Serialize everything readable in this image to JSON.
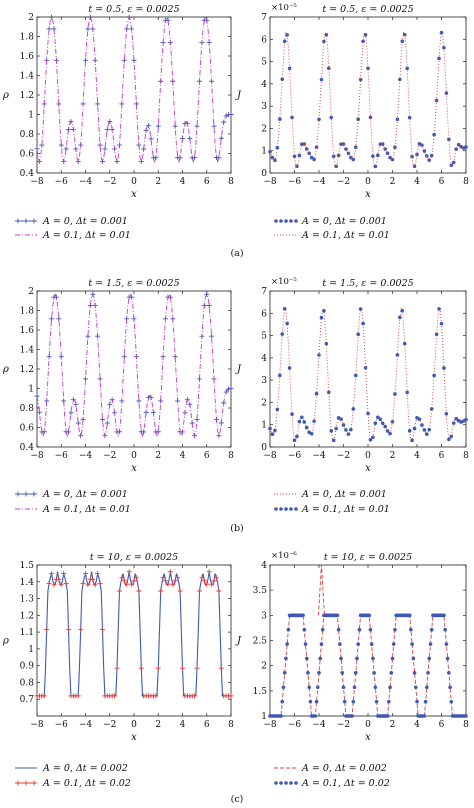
{
  "panels": [
    {
      "label": "(a)"
    },
    {
      "label": "(b)"
    },
    {
      "label": "(c)"
    }
  ],
  "chart_data": [
    {
      "id": "a-rho",
      "panel": 0,
      "side": "left",
      "type": "line",
      "title": "t = 0.5, ε = 0.0025",
      "xlabel": "x",
      "ylabel": "ρ",
      "exponent": "",
      "xlim": [
        -8,
        8
      ],
      "ylim": [
        0.4,
        2.0
      ],
      "xticks": [
        -8,
        -6,
        -4,
        -2,
        0,
        2,
        4,
        6,
        8
      ],
      "yticks": [
        0.4,
        0.6,
        0.8,
        1,
        1.2,
        1.4,
        1.6,
        1.8,
        2
      ],
      "ytick_labels": [
        "0.4",
        "0.6",
        "0.8",
        "1",
        "1.2",
        "1.4",
        "1.6",
        "1.8",
        "2"
      ],
      "profile": {
        "kind": "rho",
        "centers": [
          -6.8,
          -3.6,
          -0.4,
          2.7,
          5.9
        ],
        "base": 1.0,
        "peak": 2.0,
        "trough": 0.45,
        "mid": 1.05
      },
      "series": [
        {
          "name": "A = 0, Δt = 0.001",
          "style": "plus",
          "color": "#3f59b5",
          "values": [
            0.97,
            0.88,
            0.45,
            1.52,
            2.0,
            1.52,
            0.45,
            0.88,
            1.06,
            0.88,
            0.45,
            1.52,
            2.0,
            1.52,
            0.45,
            0.88,
            1.06,
            0.88,
            0.45,
            1.52,
            2.0,
            1.52,
            0.45,
            0.88,
            1.06,
            0.88,
            0.45,
            1.52,
            2.0,
            1.52,
            0.45,
            0.88,
            1.06,
            0.88,
            0.45,
            1.52,
            2.0,
            1.52,
            0.45,
            0.88,
            1.0
          ]
        },
        {
          "name": "A = 0.1, Δt = 0.01",
          "style": "dashdot",
          "color": "#cc33cc"
        }
      ]
    },
    {
      "id": "a-J",
      "panel": 0,
      "side": "right",
      "type": "line",
      "title": "t = 0.5, ε = 0.0025",
      "xlabel": "x",
      "ylabel": "J",
      "exponent": "×10⁻⁵",
      "xlim": [
        -8,
        8
      ],
      "ylim": [
        0,
        7
      ],
      "xticks": [
        -8,
        -6,
        -4,
        -2,
        0,
        2,
        4,
        6,
        8
      ],
      "yticks": [
        0,
        1,
        2,
        3,
        4,
        5,
        6,
        7
      ],
      "ytick_labels": [
        "0",
        "1",
        "2",
        "3",
        "4",
        "5",
        "6",
        "7"
      ],
      "profile": {
        "kind": "J",
        "centers": [
          -6.7,
          -3.5,
          -0.3,
          2.9,
          6.0
        ],
        "peak": 6.3,
        "floor": 0.3
      },
      "series": [
        {
          "name": "A = 0, Δt = 0.001",
          "style": "dots",
          "color": "#3f59b5"
        },
        {
          "name": "A = 0.1, Δt = 0.01",
          "style": "dotted",
          "color": "#e03c3c"
        }
      ]
    },
    {
      "id": "b-rho",
      "panel": 1,
      "side": "left",
      "type": "line",
      "title": "t = 1.5, ε = 0.0025",
      "xlabel": "x",
      "ylabel": "ρ",
      "exponent": "",
      "xlim": [
        -8,
        8
      ],
      "ylim": [
        0.4,
        2.0
      ],
      "xticks": [
        -8,
        -6,
        -4,
        -2,
        0,
        2,
        4,
        6,
        8
      ],
      "yticks": [
        0.4,
        0.6,
        0.8,
        1,
        1.2,
        1.4,
        1.6,
        1.8,
        2
      ],
      "ytick_labels": [
        "0.4",
        "0.6",
        "0.8",
        "1",
        "1.2",
        "1.4",
        "1.6",
        "1.8",
        "2"
      ],
      "profile": {
        "kind": "rho",
        "centers": [
          -6.5,
          -3.4,
          -0.3,
          2.9,
          6.0
        ],
        "base": 1.0,
        "peak": 1.97,
        "trough": 0.45,
        "mid": 1.0
      },
      "series": [
        {
          "name": "A = 0, Δt = 0.001",
          "style": "plus",
          "color": "#3f59b5"
        },
        {
          "name": "A = 0.1, Δt = 0.01",
          "style": "dashdot",
          "color": "#cc33cc"
        }
      ]
    },
    {
      "id": "b-J",
      "panel": 1,
      "side": "right",
      "type": "line",
      "title": "t = 1.5, ε = 0.0025",
      "xlabel": "x",
      "ylabel": "J",
      "exponent": "×10⁻⁵",
      "xlim": [
        -8,
        8
      ],
      "ylim": [
        0,
        7
      ],
      "xticks": [
        -8,
        -6,
        -4,
        -2,
        0,
        2,
        4,
        6,
        8
      ],
      "yticks": [
        0,
        1,
        2,
        3,
        4,
        5,
        6,
        7
      ],
      "ytick_labels": [
        "0",
        "1",
        "2",
        "3",
        "4",
        "5",
        "6",
        "7"
      ],
      "profile": {
        "kind": "J",
        "centers": [
          -6.8,
          -3.7,
          -0.6,
          2.7,
          5.8
        ],
        "peak": 6.2,
        "floor": 0.3
      },
      "series": [
        {
          "name": "A = 0, Δt = 0.001",
          "style": "dotted",
          "color": "#e03c3c"
        },
        {
          "name": "A = 0.1, Δt = 0.01",
          "style": "dots",
          "color": "#3f59b5"
        }
      ]
    },
    {
      "id": "c-rho",
      "panel": 2,
      "side": "left",
      "type": "line",
      "title": "t = 10, ε = 0.0025",
      "xlabel": "x",
      "ylabel": "ρ",
      "exponent": "",
      "xlim": [
        -8,
        8
      ],
      "ylim": [
        0.6,
        1.5
      ],
      "xticks": [
        -8,
        -6,
        -4,
        -2,
        0,
        2,
        4,
        6,
        8
      ],
      "yticks": [
        0.7,
        0.8,
        0.9,
        1,
        1.1,
        1.2,
        1.3,
        1.4,
        1.5
      ],
      "ytick_labels": [
        "0.7",
        "0.8",
        "0.9",
        "1",
        "1.1",
        "1.2",
        "1.3",
        "1.4",
        "1.5"
      ],
      "profile": {
        "kind": "rho10",
        "centers": [
          -6.3,
          -3.5,
          -0.4,
          3.0,
          6.2
        ],
        "peak": 1.46,
        "trough": 0.65
      },
      "series": [
        {
          "name": "A = 0, Δt = 0.002",
          "style": "solid",
          "color": "#3f59b5"
        },
        {
          "name": "A = 0.1, Δt = 0.02",
          "style": "redplus",
          "color": "#e03c3c"
        }
      ]
    },
    {
      "id": "c-J",
      "panel": 2,
      "side": "right",
      "type": "line",
      "title": "t = 10, ε = 0.0025",
      "xlabel": "x",
      "ylabel": "J",
      "exponent": "×10⁻⁶",
      "xlim": [
        -8,
        8
      ],
      "ylim": [
        1,
        4
      ],
      "xticks": [
        -8,
        -6,
        -4,
        -2,
        0,
        2,
        4,
        6,
        8
      ],
      "yticks": [
        1,
        1.5,
        2,
        2.5,
        3,
        3.5,
        4
      ],
      "ytick_labels": [
        "1",
        "1.5",
        "2",
        "2.5",
        "3",
        "3.5",
        "4"
      ],
      "profile": {
        "kind": "J10",
        "plateaus": [
          [
            -6.4,
            -5.3
          ],
          [
            -3.6,
            -2.5
          ],
          [
            -0.6,
            0.1
          ],
          [
            2.3,
            3.4
          ],
          [
            5.3,
            6.2
          ]
        ],
        "spike": -3.8
      },
      "series": [
        {
          "name": "A = 0, Δt = 0.002",
          "style": "dashed",
          "color": "#e03c3c"
        },
        {
          "name": "A = 0.1, Δt = 0.02",
          "style": "dots",
          "color": "#3f59b5"
        }
      ]
    }
  ]
}
